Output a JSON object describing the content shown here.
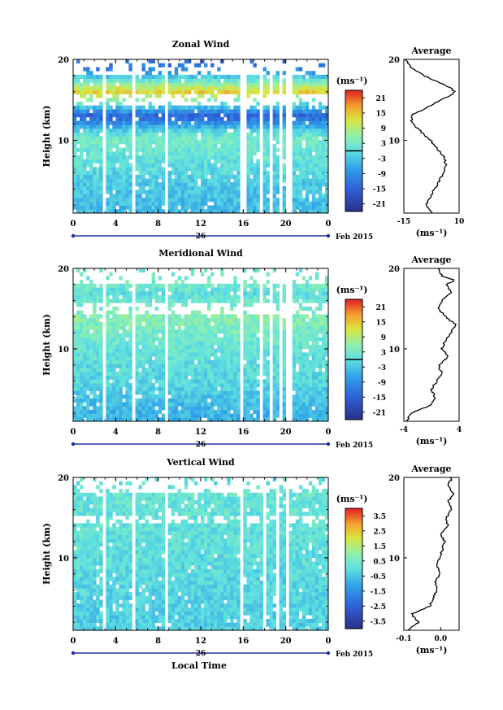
{
  "date_label": "Feb 2015",
  "day_label": "26",
  "x_axis_label": "Local Time",
  "y_axis_label": "Height (km)",
  "unit_label": "(ms⁻¹)",
  "average_title": "Average",
  "colors": {
    "low": "#2b2f86",
    "mid_low": "#2f8bdc",
    "mid": "#5fe0e0",
    "mid_high": "#d8e640",
    "high": "#e02020",
    "axis_blue": "#2030a0"
  },
  "chart_data": [
    {
      "type": "heatmap",
      "title": "Zonal Wind",
      "xlabel": "",
      "ylabel": "Height (km)",
      "x_ticks": [
        "0",
        "4",
        "8",
        "12",
        "16",
        "20",
        "0"
      ],
      "xlim": [
        0,
        24
      ],
      "ylim": [
        1,
        20
      ],
      "y_ticks": [
        "10",
        "20"
      ],
      "colorbar": {
        "ticks": [
          "21",
          "15",
          "9",
          "3",
          "-3",
          "-9",
          "-15",
          "-21"
        ],
        "range": [
          -24,
          24
        ],
        "unit": "(ms⁻¹)"
      },
      "data_gaps_hours": [
        3.0,
        5.8,
        8.8,
        15.8,
        16.2,
        17.7,
        18.5,
        19.5,
        20.3
      ],
      "profile_by_height": [
        {
          "h": 2,
          "v": -4
        },
        {
          "h": 4,
          "v": -3
        },
        {
          "h": 6,
          "v": -1
        },
        {
          "h": 8,
          "v": 1
        },
        {
          "h": 10,
          "v": 3
        },
        {
          "h": 11,
          "v": 0
        },
        {
          "h": 12,
          "v": -8
        },
        {
          "h": 13,
          "v": -15
        },
        {
          "h": 14,
          "v": -5
        },
        {
          "h": 15,
          "v": 5
        },
        {
          "h": 16,
          "v": 14
        },
        {
          "h": 17,
          "v": 6
        },
        {
          "h": 18,
          "v": -4
        },
        {
          "h": 19,
          "v": -12
        },
        {
          "h": 20,
          "v": -14
        }
      ],
      "average": {
        "title": "Average",
        "xlim": [
          -15,
          10
        ],
        "x_ticks": [
          "-15",
          "10"
        ],
        "y_ticks": [
          "10",
          "20"
        ],
        "xlabel": "(ms⁻¹)",
        "profile": [
          {
            "h": 1,
            "v": -2
          },
          {
            "h": 2,
            "v": -5
          },
          {
            "h": 3,
            "v": -3
          },
          {
            "h": 4,
            "v": -1
          },
          {
            "h": 5,
            "v": 1
          },
          {
            "h": 6,
            "v": 3
          },
          {
            "h": 7,
            "v": 4
          },
          {
            "h": 8,
            "v": 3
          },
          {
            "h": 9,
            "v": 0
          },
          {
            "h": 10,
            "v": -3
          },
          {
            "h": 11,
            "v": -7
          },
          {
            "h": 12,
            "v": -11
          },
          {
            "h": 13,
            "v": -12
          },
          {
            "h": 14,
            "v": -5
          },
          {
            "h": 15,
            "v": 2
          },
          {
            "h": 15.5,
            "v": 6
          },
          {
            "h": 16,
            "v": 8
          },
          {
            "h": 16.5,
            "v": 6
          },
          {
            "h": 17,
            "v": 2
          },
          {
            "h": 18,
            "v": -6
          },
          {
            "h": 19,
            "v": -12
          },
          {
            "h": 20,
            "v": -14
          }
        ]
      }
    },
    {
      "type": "heatmap",
      "title": "Meridional Wind",
      "xlabel": "",
      "ylabel": "Height (km)",
      "x_ticks": [
        "0",
        "4",
        "8",
        "12",
        "16",
        "20",
        "0"
      ],
      "xlim": [
        0,
        24
      ],
      "ylim": [
        1,
        20
      ],
      "y_ticks": [
        "10",
        "20"
      ],
      "colorbar": {
        "ticks": [
          "21",
          "15",
          "9",
          "3",
          "-3",
          "-9",
          "-15",
          "-21"
        ],
        "range": [
          -24,
          24
        ],
        "unit": "(ms⁻¹)"
      },
      "data_gaps_hours": [
        3.0,
        5.8,
        8.8,
        15.8,
        17.7,
        18.5,
        19.5,
        20.3
      ],
      "profile_by_height": [
        {
          "h": 2,
          "v": -5
        },
        {
          "h": 4,
          "v": -3
        },
        {
          "h": 6,
          "v": -1
        },
        {
          "h": 8,
          "v": 0
        },
        {
          "h": 10,
          "v": 1
        },
        {
          "h": 12,
          "v": 3
        },
        {
          "h": 14,
          "v": 5
        },
        {
          "h": 16,
          "v": 2
        },
        {
          "h": 17,
          "v": 0
        },
        {
          "h": 18,
          "v": 3
        },
        {
          "h": 20,
          "v": 2
        }
      ],
      "average": {
        "title": "Average",
        "xlim": [
          -4,
          4
        ],
        "x_ticks": [
          "-4",
          "4"
        ],
        "y_ticks": [
          "10",
          "20"
        ],
        "xlabel": "(ms⁻¹)",
        "profile": [
          {
            "h": 1,
            "v": -3.5
          },
          {
            "h": 2,
            "v": -3
          },
          {
            "h": 2.5,
            "v": -1.5
          },
          {
            "h": 3,
            "v": 0
          },
          {
            "h": 4,
            "v": 0.5
          },
          {
            "h": 5,
            "v": 0
          },
          {
            "h": 6,
            "v": 0.8
          },
          {
            "h": 7,
            "v": 1.5
          },
          {
            "h": 8,
            "v": 1
          },
          {
            "h": 9,
            "v": 2.5
          },
          {
            "h": 10,
            "v": 1.5
          },
          {
            "h": 11,
            "v": 2
          },
          {
            "h": 12,
            "v": 2.8
          },
          {
            "h": 13,
            "v": 3.5
          },
          {
            "h": 14,
            "v": 2
          },
          {
            "h": 15,
            "v": 1
          },
          {
            "h": 16,
            "v": 1.5
          },
          {
            "h": 17,
            "v": 3
          },
          {
            "h": 18,
            "v": 2
          },
          {
            "h": 18.5,
            "v": 3.5
          },
          {
            "h": 19,
            "v": 1.5
          },
          {
            "h": 20,
            "v": 1
          }
        ]
      }
    },
    {
      "type": "heatmap",
      "title": "Vertical Wind",
      "xlabel": "Local Time",
      "ylabel": "Height (km)",
      "x_ticks": [
        "0",
        "4",
        "8",
        "12",
        "16",
        "20",
        "0"
      ],
      "xlim": [
        0,
        24
      ],
      "ylim": [
        1,
        20
      ],
      "y_ticks": [
        "10",
        "20"
      ],
      "colorbar": {
        "ticks": [
          "3.5",
          "2.5",
          "1.5",
          "0.5",
          "-0.5",
          "-1.5",
          "-2.5",
          "-3.5"
        ],
        "range": [
          -4,
          4
        ],
        "unit": "(ms⁻¹)"
      },
      "data_gaps_hours": [
        3.0,
        5.8,
        8.8,
        15.8,
        18.0,
        19.2,
        20.2
      ],
      "profile_by_height": [
        {
          "h": 2,
          "v": -0.3
        },
        {
          "h": 6,
          "v": -0.2
        },
        {
          "h": 10,
          "v": 0
        },
        {
          "h": 14,
          "v": 0.1
        },
        {
          "h": 18,
          "v": 0.2
        },
        {
          "h": 20,
          "v": 0.1
        }
      ],
      "average": {
        "title": "Average",
        "xlim": [
          -0.1,
          0.05
        ],
        "x_ticks": [
          "-0.1",
          "0.0"
        ],
        "y_ticks": [
          "10",
          "20"
        ],
        "xlabel": "(ms⁻¹)",
        "profile": [
          {
            "h": 1,
            "v": -0.09
          },
          {
            "h": 2,
            "v": -0.06
          },
          {
            "h": 3,
            "v": -0.08
          },
          {
            "h": 4,
            "v": -0.03
          },
          {
            "h": 5,
            "v": -0.02
          },
          {
            "h": 6,
            "v": -0.01
          },
          {
            "h": 7,
            "v": -0.015
          },
          {
            "h": 8,
            "v": 0.0
          },
          {
            "h": 9,
            "v": -0.01
          },
          {
            "h": 10,
            "v": -0.005
          },
          {
            "h": 11,
            "v": 0.005
          },
          {
            "h": 12,
            "v": 0.01
          },
          {
            "h": 13,
            "v": 0.0
          },
          {
            "h": 14,
            "v": 0.02
          },
          {
            "h": 15,
            "v": 0.015
          },
          {
            "h": 16,
            "v": 0.03
          },
          {
            "h": 17,
            "v": 0.02
          },
          {
            "h": 18,
            "v": 0.035
          },
          {
            "h": 19,
            "v": 0.02
          },
          {
            "h": 20,
            "v": 0.03
          }
        ]
      }
    }
  ]
}
